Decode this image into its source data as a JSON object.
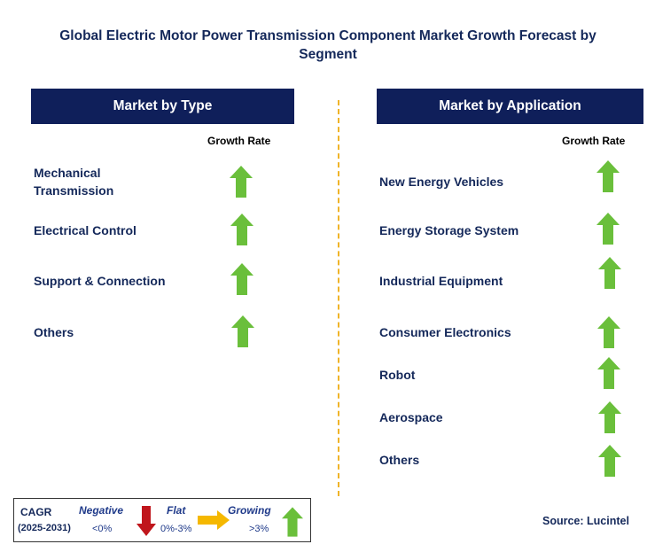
{
  "title": "Global Electric Motor Power Transmission Component Market Growth Forecast by Segment",
  "left": {
    "header": "Market by Type",
    "growth_label": "Growth Rate",
    "items": [
      {
        "label": "Mechanical Transmission",
        "growth": "growing"
      },
      {
        "label": "Electrical Control",
        "growth": "growing"
      },
      {
        "label": "Support & Connection",
        "growth": "growing"
      },
      {
        "label": "Others",
        "growth": "growing"
      }
    ]
  },
  "right": {
    "header": "Market by Application",
    "growth_label": "Growth Rate",
    "items": [
      {
        "label": "New Energy Vehicles",
        "growth": "growing"
      },
      {
        "label": "Energy Storage System",
        "growth": "growing"
      },
      {
        "label": "Industrial Equipment",
        "growth": "growing"
      },
      {
        "label": "Consumer Electronics",
        "growth": "growing"
      },
      {
        "label": "Robot",
        "growth": "growing"
      },
      {
        "label": "Aerospace",
        "growth": "growing"
      },
      {
        "label": "Others",
        "growth": "growing"
      }
    ]
  },
  "legend": {
    "cagr": "CAGR",
    "period": "(2025-2031)",
    "negative_label": "Negative",
    "negative_range": "<0%",
    "flat_label": "Flat",
    "flat_range": "0%-3%",
    "growing_label": "Growing",
    "growing_range": ">3%"
  },
  "source": "Source: Lucintel",
  "colors": {
    "header_bg": "#0f1f5a",
    "growing": "#6abf3b",
    "negative": "#c0161c",
    "flat": "#f5b800",
    "divider": "#f0b429"
  },
  "icons": {
    "growing": "up-arrow-icon",
    "negative": "down-arrow-icon",
    "flat": "right-arrow-icon"
  }
}
